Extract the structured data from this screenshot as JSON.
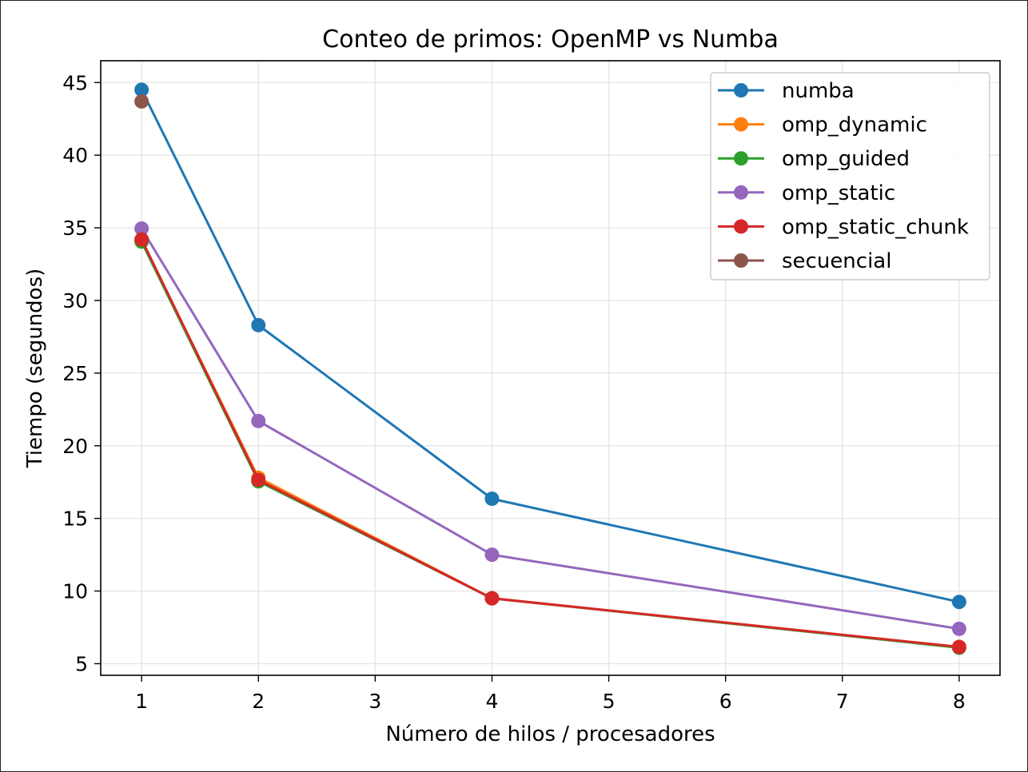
{
  "chart_data": {
    "type": "line",
    "title": "Conteo de primos: OpenMP vs Numba",
    "xlabel": "Número de hilos / procesadores",
    "ylabel": "Tiempo (segundos)",
    "xlim": [
      0.65,
      8.35
    ],
    "ylim": [
      4.2,
      46.5
    ],
    "xticks": [
      1,
      2,
      3,
      4,
      5,
      6,
      7,
      8
    ],
    "yticks": [
      5,
      10,
      15,
      20,
      25,
      30,
      35,
      40,
      45
    ],
    "grid": true,
    "legend_position": "top-right",
    "series": [
      {
        "name": "numba",
        "color": "#1f77b4",
        "x": [
          1,
          2,
          4,
          8
        ],
        "y": [
          44.5,
          28.3,
          16.35,
          9.25
        ]
      },
      {
        "name": "omp_dynamic",
        "color": "#ff7f0e",
        "x": [
          1,
          2,
          4,
          8
        ],
        "y": [
          34.1,
          17.8,
          9.5,
          6.15
        ]
      },
      {
        "name": "omp_guided",
        "color": "#2ca02c",
        "x": [
          1,
          2,
          4,
          8
        ],
        "y": [
          34.05,
          17.55,
          9.5,
          6.1
        ]
      },
      {
        "name": "omp_static",
        "color": "#9467bd",
        "x": [
          1,
          2,
          4,
          8
        ],
        "y": [
          34.95,
          21.7,
          12.5,
          7.4
        ]
      },
      {
        "name": "omp_static_chunk",
        "color": "#d62728",
        "x": [
          1,
          2,
          4,
          8
        ],
        "y": [
          34.2,
          17.65,
          9.5,
          6.15
        ]
      },
      {
        "name": "secuencial",
        "color": "#8c564b",
        "x": [
          1
        ],
        "y": [
          43.7
        ]
      }
    ]
  }
}
